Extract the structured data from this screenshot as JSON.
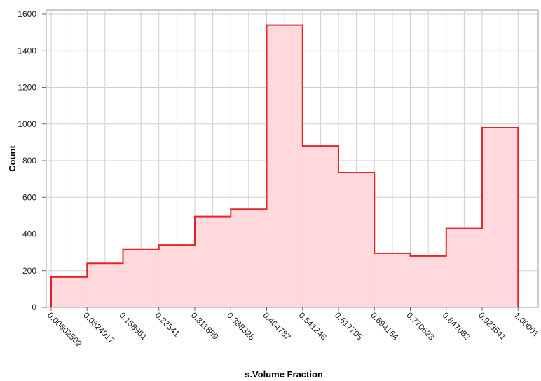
{
  "chart_data": {
    "type": "bar",
    "subtype": "histogram",
    "xlabel": "s.Volume Fraction",
    "ylabel": "Count",
    "bin_edges": [
      0.00602502,
      0.0824917,
      0.158951,
      0.23541,
      0.311869,
      0.388328,
      0.464787,
      0.541246,
      0.617705,
      0.694164,
      0.770623,
      0.847082,
      0.923541,
      1.00001
    ],
    "x_tick_labels": [
      "0.00602502",
      "0.0824917",
      "0.158951",
      "0.23541",
      "0.311869",
      "0.388328",
      "0.464787",
      "0.541246",
      "0.617705",
      "0.694164",
      "0.770623",
      "0.847082",
      "0.923541",
      "1.00001"
    ],
    "values": [
      165,
      240,
      315,
      340,
      495,
      535,
      1540,
      880,
      735,
      295,
      280,
      430,
      980
    ],
    "y_ticks": [
      0,
      200,
      400,
      600,
      800,
      1000,
      1200,
      1400,
      1600
    ],
    "ylim": [
      0,
      1600
    ],
    "grid": true,
    "colors": {
      "line": "#e8232a",
      "fill": "#ffd9dc",
      "grid": "#cfcfcf"
    }
  }
}
